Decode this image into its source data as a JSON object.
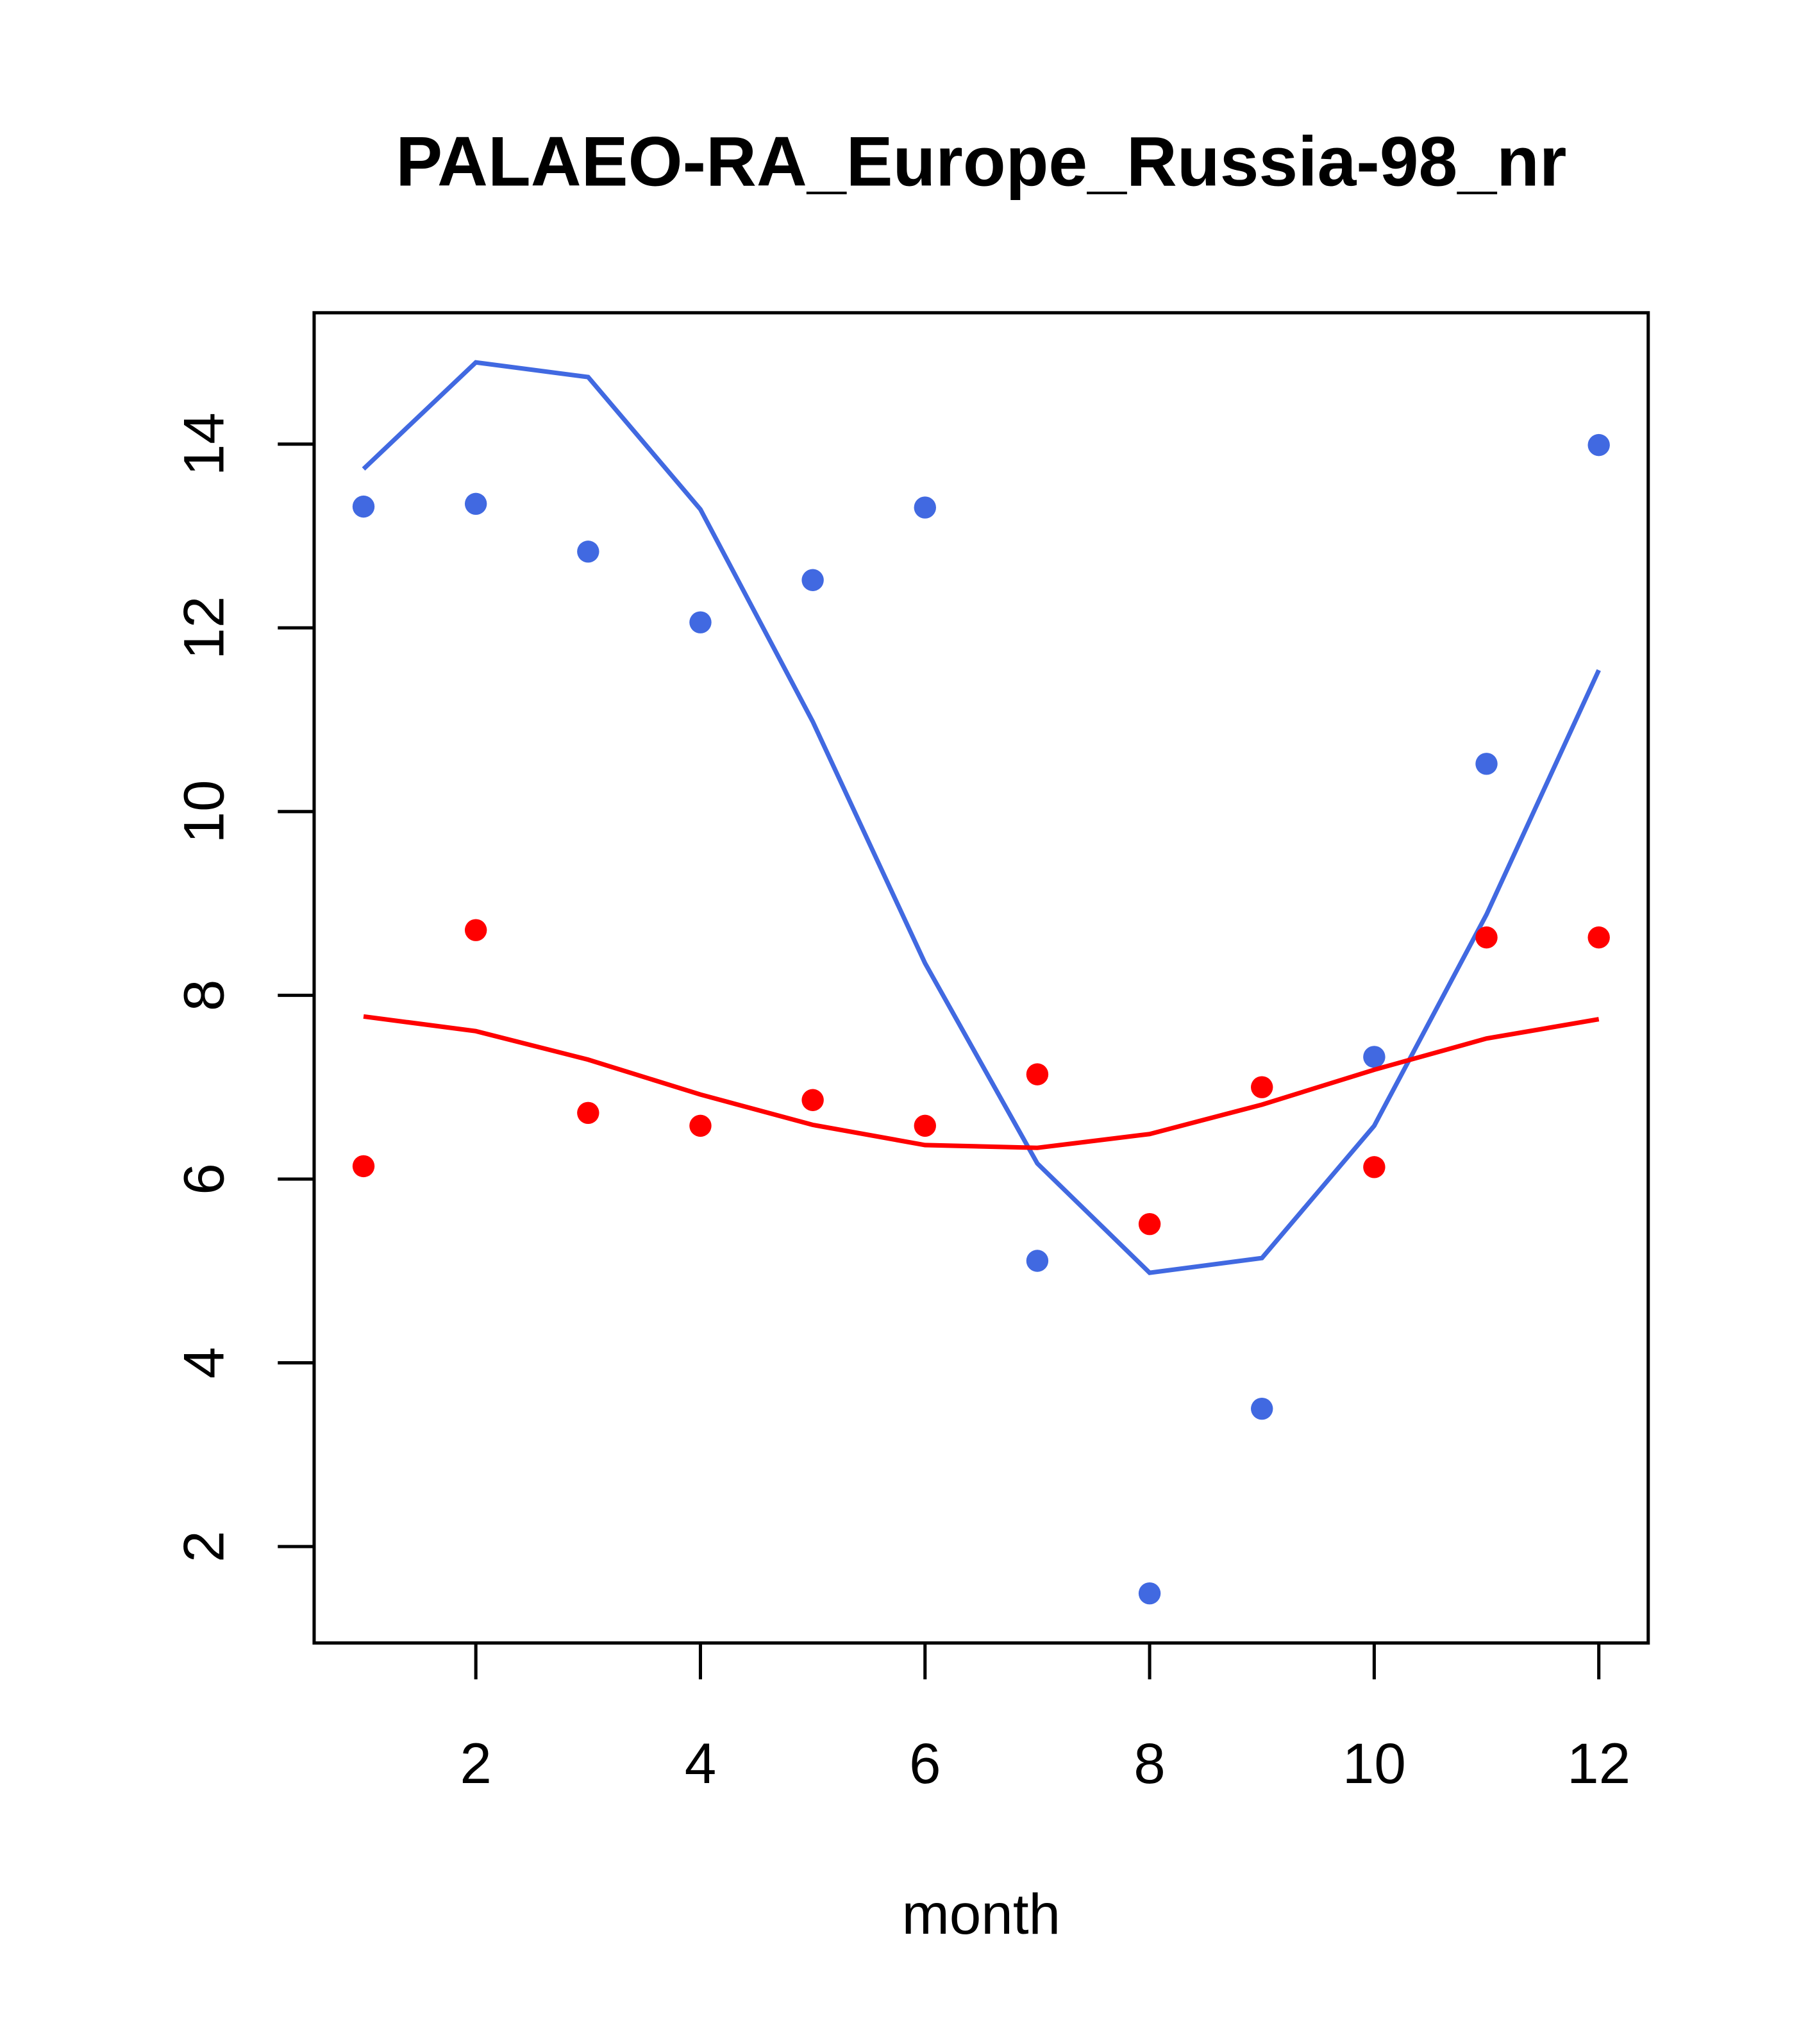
{
  "chart_data": {
    "type": "line",
    "title": "PALAEO-RA_Europe_Russia-98_nr",
    "xlabel": "month",
    "ylabel": "",
    "xlim": [
      0.56,
      12.44
    ],
    "ylim": [
      0.95,
      15.43
    ],
    "x_ticks": [
      2,
      4,
      6,
      8,
      10,
      12
    ],
    "y_ticks": [
      2,
      4,
      6,
      8,
      10,
      12,
      14
    ],
    "grid": false,
    "x": [
      1,
      2,
      3,
      4,
      5,
      6,
      7,
      8,
      9,
      10,
      11,
      12
    ],
    "series": [
      {
        "name": "blue points",
        "kind": "scatter",
        "color": "#4169E1",
        "values": [
          13.32,
          13.35,
          12.83,
          12.06,
          12.52,
          13.31,
          5.11,
          1.49,
          3.5,
          7.33,
          10.52,
          13.99
        ]
      },
      {
        "name": "blue line",
        "kind": "line",
        "color": "#4169E1",
        "values": [
          13.73,
          14.89,
          14.73,
          13.29,
          10.98,
          8.35,
          6.17,
          4.98,
          5.14,
          6.58,
          8.88,
          11.54
        ]
      },
      {
        "name": "red points",
        "kind": "scatter",
        "color": "#FF0000",
        "values": [
          6.14,
          8.71,
          6.72,
          6.58,
          6.86,
          6.58,
          7.14,
          5.51,
          7.0,
          6.13,
          8.63,
          8.63
        ]
      },
      {
        "name": "red line",
        "kind": "line",
        "color": "#FF0000",
        "values": [
          7.77,
          7.61,
          7.3,
          6.92,
          6.59,
          6.37,
          6.34,
          6.49,
          6.81,
          7.19,
          7.53,
          7.74
        ]
      }
    ]
  }
}
